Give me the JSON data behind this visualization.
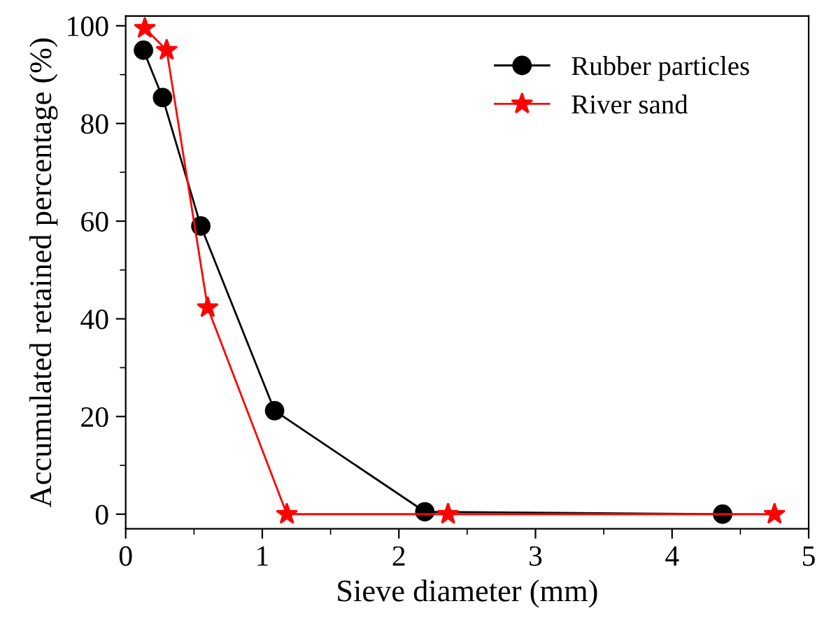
{
  "chart_data": {
    "type": "line",
    "xlabel": "Sieve diameter (mm)",
    "ylabel": "Accumulated retained percentage (%)",
    "xlim": [
      0,
      5
    ],
    "ylim": [
      -3,
      102
    ],
    "xticks": [
      0,
      {
        "value": 0.5,
        "label": null
      },
      1,
      {
        "value": 1.5,
        "label": null
      },
      2,
      {
        "value": 2.5,
        "label": null
      },
      3,
      {
        "value": 3.5,
        "label": null
      },
      4,
      {
        "value": 4.5,
        "label": null
      },
      5
    ],
    "yticks": [
      0,
      {
        "value": 10,
        "label": null
      },
      20,
      {
        "value": 30,
        "label": null
      },
      40,
      {
        "value": 50,
        "label": null
      },
      60,
      {
        "value": 70,
        "label": null
      },
      80,
      {
        "value": 90,
        "label": null
      },
      100
    ],
    "grid": false,
    "legend": "top right",
    "line_style": "solid",
    "series": [
      {
        "name": "Rubber particles",
        "color": "#000000",
        "marker": "circle",
        "x": [
          0.13,
          0.27,
          0.55,
          1.09,
          2.19,
          4.37
        ],
        "values": [
          95,
          85.3,
          59,
          21.2,
          0.5,
          0
        ]
      },
      {
        "name": "River sand",
        "color": "#ff0000",
        "marker": "star",
        "x": [
          0.14,
          0.3,
          0.6,
          1.18,
          2.36,
          4.75
        ],
        "values": [
          99.5,
          95,
          42.3,
          0,
          0,
          0
        ]
      }
    ]
  }
}
